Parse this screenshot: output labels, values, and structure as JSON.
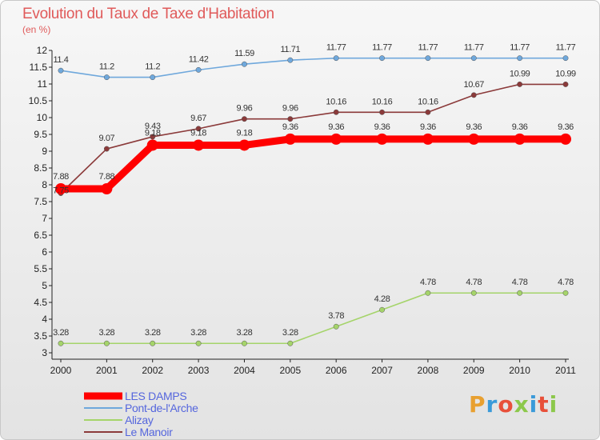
{
  "title": "Evolution du Taux de Taxe d'Habitation",
  "unit_label": "(en %)",
  "logo_text": "Proxiti",
  "logo_colors": [
    "#e8a030",
    "#3a9ad9",
    "#e8503a",
    "#8cc84b",
    "#3a9ad9",
    "#e8503a",
    "#8cc84b"
  ],
  "chart_data": {
    "type": "line",
    "title": "Evolution du Taux de Taxe d'Habitation",
    "ylabel": "(en %)",
    "xlabel": "",
    "x": [
      2000,
      2001,
      2002,
      2003,
      2004,
      2005,
      2006,
      2007,
      2008,
      2009,
      2010,
      2011
    ],
    "ylim": [
      3,
      12
    ],
    "yticks": [
      3,
      3.5,
      4,
      4.5,
      5,
      5.5,
      6,
      6.5,
      7,
      7.5,
      8,
      8.5,
      9,
      9.5,
      10,
      10.5,
      11,
      11.5,
      12
    ],
    "grid": false,
    "legend_position": "bottom-left",
    "series": [
      {
        "name": "LES DAMPS",
        "color": "#ff0000",
        "values": [
          7.88,
          7.88,
          9.18,
          9.18,
          9.18,
          9.36,
          9.36,
          9.36,
          9.36,
          9.36,
          9.36,
          9.36
        ],
        "labels": [
          "7.88",
          "7.88",
          "9.18",
          "9.18",
          "9.18",
          "9.36",
          "9.36",
          "9.36",
          "9.36",
          "9.36",
          "9.36",
          "9.36"
        ]
      },
      {
        "name": "Pont-de-l'Arche",
        "color": "#6fa8dc",
        "values": [
          11.4,
          11.2,
          11.2,
          11.42,
          11.59,
          11.71,
          11.77,
          11.77,
          11.77,
          11.77,
          11.77,
          11.77
        ],
        "labels": [
          "11.4",
          "11.2",
          "11.2",
          "11.42",
          "11.59",
          "11.71",
          "11.77",
          "11.77",
          "11.77",
          "11.77",
          "11.77",
          "11.77"
        ]
      },
      {
        "name": "Alizay",
        "color": "#a5d46a",
        "values": [
          3.28,
          3.28,
          3.28,
          3.28,
          3.28,
          3.28,
          3.78,
          4.28,
          4.78,
          4.78,
          4.78,
          4.78
        ],
        "labels": [
          "3.28",
          "3.28",
          "3.28",
          "3.28",
          "3.28",
          "3.28",
          "3.78",
          "4.28",
          "4.78",
          "4.78",
          "4.78",
          "4.78"
        ]
      },
      {
        "name": "Le Manoir",
        "color": "#8b3a3a",
        "values": [
          7.75,
          9.07,
          9.43,
          9.67,
          9.96,
          9.96,
          10.16,
          10.16,
          10.16,
          10.67,
          10.99,
          10.99
        ],
        "labels": [
          "7.75",
          "9.07",
          "9.43",
          "9.67",
          "9.96",
          "9.96",
          "10.16",
          "10.16",
          "10.16",
          "10.67",
          "10.99",
          "10.99"
        ]
      }
    ]
  }
}
